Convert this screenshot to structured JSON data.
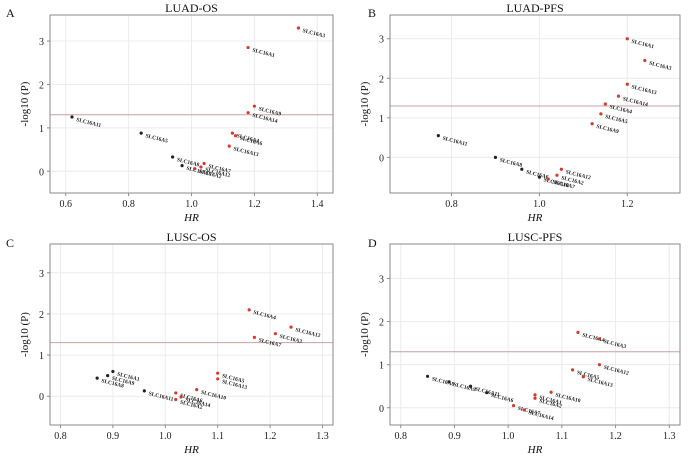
{
  "colors": {
    "highlight": "#d9372a",
    "normal": "#222222",
    "threshold": "#c9a0a0",
    "frame": "#8a8a8a",
    "grid": "#ececec"
  },
  "chart_data": [
    {
      "type": "scatter",
      "panel_label": "A",
      "title": "LUAD-OS",
      "xlabel": "HR",
      "ylabel": "-log10 (P)",
      "xlim": [
        0.55,
        1.45
      ],
      "ylim": [
        -0.5,
        3.6
      ],
      "xticks": [
        "0.6",
        "0.8",
        "1.0",
        "1.2",
        "1.4"
      ],
      "yticks": [
        "0",
        "1",
        "2",
        "3"
      ],
      "threshold": 1.301,
      "points": [
        {
          "label": "SLC16A3",
          "x": 1.34,
          "y": 3.3,
          "sig": true
        },
        {
          "label": "SLC16A1",
          "x": 1.18,
          "y": 2.85,
          "sig": true
        },
        {
          "label": "SLC16A9",
          "x": 1.2,
          "y": 1.5,
          "sig": true
        },
        {
          "label": "SLC16A14",
          "x": 1.18,
          "y": 1.35,
          "sig": true
        },
        {
          "label": "SLC16A11",
          "x": 0.62,
          "y": 1.25,
          "sig": false
        },
        {
          "label": "SLC16A4",
          "x": 1.13,
          "y": 0.88,
          "sig": true
        },
        {
          "label": "SLC16A5",
          "x": 0.84,
          "y": 0.88,
          "sig": false
        },
        {
          "label": "SLC16A6",
          "x": 1.14,
          "y": 0.82,
          "sig": true
        },
        {
          "label": "SLC16A13",
          "x": 1.12,
          "y": 0.58,
          "sig": true
        },
        {
          "label": "SLC16A8",
          "x": 0.94,
          "y": 0.33,
          "sig": false
        },
        {
          "label": "SLC16A7",
          "x": 1.04,
          "y": 0.18,
          "sig": true
        },
        {
          "label": "SLC16A10",
          "x": 0.97,
          "y": 0.13,
          "sig": false
        },
        {
          "label": "SLC16A12",
          "x": 1.03,
          "y": 0.1,
          "sig": true
        },
        {
          "label": "SLC16A2",
          "x": 1.01,
          "y": 0.06,
          "sig": true
        }
      ]
    },
    {
      "type": "scatter",
      "panel_label": "B",
      "title": "LUAD-PFS",
      "xlabel": "HR",
      "ylabel": "-log10 (P)",
      "xlim": [
        0.66,
        1.32
      ],
      "ylim": [
        -0.9,
        3.6
      ],
      "xticks": [
        "0.8",
        "1.0",
        "1.2"
      ],
      "yticks": [
        "0",
        "1",
        "2",
        "3"
      ],
      "threshold": 1.301,
      "points": [
        {
          "label": "SLC16A1",
          "x": 1.2,
          "y": 3.0,
          "sig": true
        },
        {
          "label": "SLC16A3",
          "x": 1.24,
          "y": 2.45,
          "sig": true
        },
        {
          "label": "SLC16A13",
          "x": 1.2,
          "y": 1.85,
          "sig": true
        },
        {
          "label": "SLC16A14",
          "x": 1.18,
          "y": 1.55,
          "sig": true
        },
        {
          "label": "SLC16A4",
          "x": 1.15,
          "y": 1.35,
          "sig": true
        },
        {
          "label": "SLC16A5",
          "x": 1.14,
          "y": 1.1,
          "sig": true
        },
        {
          "label": "SLC16A11",
          "x": 0.77,
          "y": 0.55,
          "sig": false
        },
        {
          "label": "SLC16A9",
          "x": 1.12,
          "y": 0.85,
          "sig": true
        },
        {
          "label": "SLC16A8",
          "x": 0.9,
          "y": 0.0,
          "sig": false
        },
        {
          "label": "SLC16A12",
          "x": 1.05,
          "y": -0.3,
          "sig": true
        },
        {
          "label": "SLC16A2",
          "x": 1.04,
          "y": -0.45,
          "sig": true
        },
        {
          "label": "SLC16A6",
          "x": 0.96,
          "y": -0.3,
          "sig": false
        },
        {
          "label": "SLC16A10",
          "x": 1.0,
          "y": -0.5,
          "sig": false
        },
        {
          "label": "SLC16A7",
          "x": 1.02,
          "y": -0.55,
          "sig": true
        }
      ]
    },
    {
      "type": "scatter",
      "panel_label": "C",
      "title": "LUSC-OS",
      "xlabel": "HR",
      "ylabel": "-log10 (P)",
      "xlim": [
        0.78,
        1.32
      ],
      "ylim": [
        -0.7,
        3.7
      ],
      "xticks": [
        "0.8",
        "0.9",
        "1.0",
        "1.1",
        "1.2",
        "1.3"
      ],
      "yticks": [
        "0",
        "1",
        "2",
        "3"
      ],
      "threshold": 1.301,
      "points": [
        {
          "label": "SLC16A4",
          "x": 1.16,
          "y": 2.1,
          "sig": true
        },
        {
          "label": "SLC16A12",
          "x": 1.24,
          "y": 1.68,
          "sig": true
        },
        {
          "label": "SLC16A3",
          "x": 1.21,
          "y": 1.52,
          "sig": true
        },
        {
          "label": "SLC16A7",
          "x": 1.17,
          "y": 1.43,
          "sig": true
        },
        {
          "label": "SLC16A1",
          "x": 0.9,
          "y": 0.6,
          "sig": false
        },
        {
          "label": "SLC16A9",
          "x": 0.89,
          "y": 0.5,
          "sig": false
        },
        {
          "label": "SLC16A5",
          "x": 1.1,
          "y": 0.56,
          "sig": true
        },
        {
          "label": "SLC16A8",
          "x": 0.87,
          "y": 0.44,
          "sig": false
        },
        {
          "label": "SLC16A13",
          "x": 1.1,
          "y": 0.42,
          "sig": true
        },
        {
          "label": "SLC16A10",
          "x": 1.06,
          "y": 0.16,
          "sig": true
        },
        {
          "label": "SLC16A11",
          "x": 0.96,
          "y": 0.13,
          "sig": false
        },
        {
          "label": "SLC16A6",
          "x": 1.02,
          "y": 0.08,
          "sig": true
        },
        {
          "label": "SLC16A14",
          "x": 1.03,
          "y": -0.02,
          "sig": true
        },
        {
          "label": "SLC16A2",
          "x": 1.02,
          "y": -0.08,
          "sig": true
        }
      ]
    },
    {
      "type": "scatter",
      "panel_label": "D",
      "title": "LUSC-PFS",
      "xlabel": "HR",
      "ylabel": "-log10 (P)",
      "xlim": [
        0.78,
        1.32
      ],
      "ylim": [
        -0.4,
        3.8
      ],
      "xticks": [
        "0.8",
        "0.9",
        "1.0",
        "1.1",
        "1.2",
        "1.3"
      ],
      "yticks": [
        "0",
        "1",
        "2",
        "3"
      ],
      "threshold": 1.301,
      "points": [
        {
          "label": "SLC16A4",
          "x": 1.13,
          "y": 1.75,
          "sig": true
        },
        {
          "label": "SLC16A3",
          "x": 1.17,
          "y": 1.6,
          "sig": true
        },
        {
          "label": "SLC16A12",
          "x": 1.17,
          "y": 1.0,
          "sig": true
        },
        {
          "label": "SLC16A5",
          "x": 1.12,
          "y": 0.88,
          "sig": true
        },
        {
          "label": "SLC16A13",
          "x": 1.14,
          "y": 0.72,
          "sig": true
        },
        {
          "label": "SLC16A8",
          "x": 0.85,
          "y": 0.73,
          "sig": false
        },
        {
          "label": "SLC16A9",
          "x": 0.89,
          "y": 0.6,
          "sig": false
        },
        {
          "label": "SLC16A11",
          "x": 0.93,
          "y": 0.5,
          "sig": false
        },
        {
          "label": "SLC16A6",
          "x": 0.96,
          "y": 0.35,
          "sig": false
        },
        {
          "label": "SLC16A10",
          "x": 1.08,
          "y": 0.36,
          "sig": true
        },
        {
          "label": "SLC16A1",
          "x": 1.05,
          "y": 0.3,
          "sig": true
        },
        {
          "label": "SLC16A2",
          "x": 1.05,
          "y": 0.22,
          "sig": true
        },
        {
          "label": "SLC16A7",
          "x": 1.01,
          "y": 0.05,
          "sig": true
        },
        {
          "label": "SLC16A14",
          "x": 1.03,
          "y": -0.05,
          "sig": true
        }
      ]
    }
  ]
}
